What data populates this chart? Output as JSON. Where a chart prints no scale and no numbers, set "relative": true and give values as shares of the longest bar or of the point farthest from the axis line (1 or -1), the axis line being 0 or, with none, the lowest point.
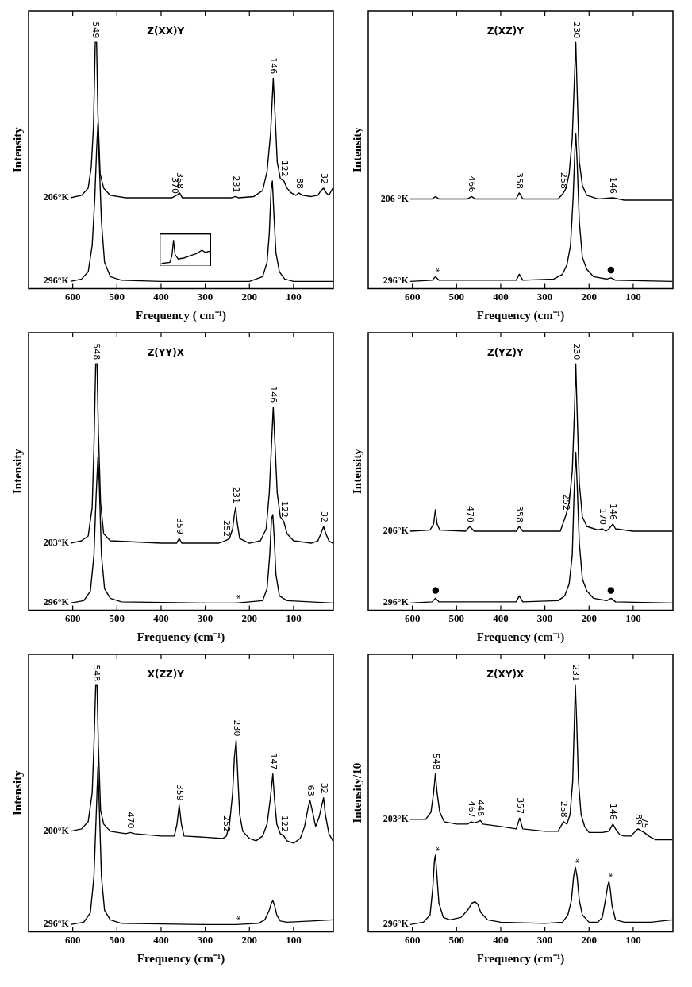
{
  "chart_data": [
    {
      "type": "line",
      "title": "Z(XX)Y",
      "xlabel": "Frequency ( cm⁻¹)",
      "ylabel": "Intensity",
      "xlim": [
        700,
        10
      ],
      "xticks": [
        600,
        500,
        400,
        300,
        200,
        100
      ],
      "relative": true,
      "tick_labels": "x",
      "series": [
        {
          "name": "206°K",
          "color": "#000000",
          "x": [
            605,
            580,
            565,
            558,
            553,
            549,
            546,
            543,
            538,
            530,
            515,
            480,
            400,
            375,
            365,
            358,
            352,
            300,
            240,
            231,
            225,
            190,
            170,
            160,
            152,
            146,
            142,
            137,
            130,
            122,
            115,
            105,
            95,
            88,
            80,
            60,
            45,
            38,
            32,
            26,
            20,
            14,
            11
          ],
          "values": [
            0.35,
            0.36,
            0.39,
            0.48,
            0.65,
            1.0,
            1.0,
            0.7,
            0.45,
            0.39,
            0.36,
            0.35,
            0.35,
            0.35,
            0.36,
            0.37,
            0.35,
            0.35,
            0.35,
            0.355,
            0.35,
            0.355,
            0.38,
            0.46,
            0.62,
            0.85,
            0.7,
            0.5,
            0.43,
            0.42,
            0.39,
            0.37,
            0.36,
            0.37,
            0.36,
            0.355,
            0.36,
            0.38,
            0.39,
            0.37,
            0.36,
            0.38,
            0.39
          ]
        },
        {
          "name": "296°K",
          "color": "#000000",
          "x": [
            605,
            580,
            565,
            556,
            550,
            546,
            543,
            540,
            535,
            528,
            515,
            490,
            400,
            200,
            170,
            160,
            155,
            151,
            148,
            145,
            140,
            132,
            120,
            100,
            11
          ],
          "values": [
            0,
            0.01,
            0.04,
            0.15,
            0.35,
            0.55,
            0.66,
            0.5,
            0.25,
            0.08,
            0.02,
            0.005,
            0,
            0,
            0.02,
            0.08,
            0.2,
            0.38,
            0.42,
            0.3,
            0.12,
            0.04,
            0.01,
            0,
            0
          ]
        }
      ],
      "annotations": [
        {
          "text": "549",
          "x": 549,
          "y": 1.0
        },
        {
          "text": "370",
          "x": 370,
          "y": 0.35
        },
        {
          "text": "358",
          "x": 358,
          "y": 0.37
        },
        {
          "text": "231",
          "x": 231,
          "y": 0.355
        },
        {
          "text": "146",
          "x": 146,
          "y": 0.85
        },
        {
          "text": "122",
          "x": 122,
          "y": 0.42
        },
        {
          "text": "88",
          "x": 88,
          "y": 0.37
        },
        {
          "text": "32",
          "x": 32,
          "y": 0.39
        }
      ]
    },
    {
      "type": "line",
      "title": "Z(XZ)Y",
      "xlabel": "Frequency (cm⁻¹)",
      "ylabel": "Intensity",
      "xlim": [
        700,
        10
      ],
      "xticks": [
        600,
        500,
        400,
        300,
        200,
        100
      ],
      "relative": true,
      "tick_labels": "x",
      "series": [
        {
          "name": "206 °K",
          "color": "#000000",
          "x": [
            605,
            555,
            548,
            540,
            475,
            466,
            458,
            365,
            358,
            350,
            270,
            258,
            252,
            245,
            238,
            233,
            230,
            227,
            222,
            215,
            205,
            180,
            146,
            120,
            11
          ],
          "values": [
            0.345,
            0.345,
            0.355,
            0.345,
            0.345,
            0.355,
            0.345,
            0.345,
            0.37,
            0.345,
            0.345,
            0.37,
            0.39,
            0.45,
            0.6,
            0.85,
            1.0,
            0.8,
            0.5,
            0.4,
            0.36,
            0.345,
            0.35,
            0.34,
            0.34
          ]
        },
        {
          "name": "296°K",
          "color": "#000000",
          "x": [
            605,
            555,
            548,
            540,
            365,
            358,
            350,
            280,
            260,
            250,
            242,
            236,
            232,
            230,
            227,
            222,
            215,
            205,
            190,
            160,
            150,
            140,
            11
          ],
          "values": [
            0,
            0.005,
            0.02,
            0.005,
            0.005,
            0.03,
            0.005,
            0.01,
            0.03,
            0.07,
            0.15,
            0.35,
            0.55,
            0.62,
            0.5,
            0.25,
            0.1,
            0.05,
            0.02,
            0.01,
            0.015,
            0.005,
            0
          ]
        }
      ],
      "annotations": [
        {
          "text": "230",
          "x": 230,
          "y": 1.0
        },
        {
          "text": "466",
          "x": 466,
          "y": 0.355
        },
        {
          "text": "358",
          "x": 358,
          "y": 0.37
        },
        {
          "text": "258",
          "x": 258,
          "y": 0.37
        },
        {
          "text": "146",
          "x": 146,
          "y": 0.35
        },
        {
          "text": "*",
          "x": 548,
          "y": 0.02
        },
        {
          "text": "●",
          "x": 150,
          "y": 0.015
        }
      ]
    },
    {
      "type": "line",
      "title": "Z(YY)X",
      "xlabel": "Frequency (cm⁻¹)",
      "ylabel": "Intensity",
      "xlim": [
        700,
        10
      ],
      "xticks": [
        600,
        500,
        400,
        300,
        200,
        100
      ],
      "relative": true,
      "tick_labels": "x",
      "series": [
        {
          "name": "203°K",
          "color": "#000000",
          "x": [
            605,
            580,
            565,
            556,
            552,
            548,
            545,
            542,
            537,
            530,
            515,
            400,
            365,
            359,
            353,
            270,
            255,
            245,
            238,
            234,
            231,
            228,
            222,
            200,
            175,
            162,
            155,
            150,
            146,
            142,
            137,
            130,
            122,
            115,
            100,
            60,
            45,
            38,
            32,
            27,
            20,
            11
          ],
          "values": [
            0.25,
            0.26,
            0.28,
            0.4,
            0.65,
            1.0,
            1.0,
            0.72,
            0.42,
            0.29,
            0.26,
            0.25,
            0.25,
            0.27,
            0.25,
            0.25,
            0.26,
            0.27,
            0.31,
            0.37,
            0.4,
            0.34,
            0.27,
            0.25,
            0.26,
            0.31,
            0.46,
            0.66,
            0.82,
            0.66,
            0.46,
            0.36,
            0.34,
            0.29,
            0.26,
            0.25,
            0.26,
            0.29,
            0.32,
            0.29,
            0.26,
            0.25
          ]
        },
        {
          "name": "296°K",
          "color": "#000000",
          "x": [
            605,
            575,
            560,
            552,
            547,
            543,
            540,
            535,
            528,
            515,
            490,
            300,
            230,
            170,
            160,
            154,
            150,
            147,
            144,
            140,
            132,
            115,
            11
          ],
          "values": [
            0,
            0.01,
            0.05,
            0.2,
            0.45,
            0.61,
            0.5,
            0.2,
            0.06,
            0.02,
            0.005,
            0,
            0,
            0.01,
            0.06,
            0.2,
            0.35,
            0.37,
            0.28,
            0.12,
            0.03,
            0.01,
            0
          ]
        }
      ],
      "annotations": [
        {
          "text": "548",
          "x": 548,
          "y": 1.0
        },
        {
          "text": "359",
          "x": 359,
          "y": 0.27
        },
        {
          "text": "252",
          "x": 252,
          "y": 0.26
        },
        {
          "text": "231",
          "x": 231,
          "y": 0.4
        },
        {
          "text": "146",
          "x": 146,
          "y": 0.82
        },
        {
          "text": "122",
          "x": 122,
          "y": 0.34
        },
        {
          "text": "32",
          "x": 32,
          "y": 0.32
        },
        {
          "text": "*",
          "x": 230,
          "y": 0
        }
      ]
    },
    {
      "type": "line",
      "title": "Z(YZ)Y",
      "xlabel": "Frequency (cm⁻¹)",
      "ylabel": "Intensity",
      "xlim": [
        700,
        10
      ],
      "xticks": [
        600,
        500,
        400,
        300,
        200,
        100
      ],
      "relative": true,
      "tick_labels": "x",
      "series": [
        {
          "name": "206°K",
          "color": "#000000",
          "x": [
            605,
            560,
            552,
            548,
            544,
            538,
            480,
            470,
            460,
            365,
            358,
            350,
            265,
            252,
            245,
            238,
            233,
            230,
            227,
            222,
            215,
            205,
            180,
            170,
            162,
            155,
            146,
            140,
            100,
            11
          ],
          "values": [
            0.3,
            0.305,
            0.33,
            0.39,
            0.33,
            0.305,
            0.3,
            0.32,
            0.3,
            0.3,
            0.32,
            0.3,
            0.3,
            0.37,
            0.42,
            0.55,
            0.8,
            1.0,
            0.8,
            0.5,
            0.36,
            0.32,
            0.305,
            0.31,
            0.3,
            0.31,
            0.33,
            0.31,
            0.3,
            0.3
          ]
        },
        {
          "name": "296°K",
          "color": "#000000",
          "x": [
            605,
            555,
            548,
            540,
            365,
            358,
            350,
            270,
            255,
            245,
            238,
            234,
            230,
            227,
            222,
            215,
            205,
            190,
            160,
            150,
            140,
            11
          ],
          "values": [
            0,
            0.005,
            0.02,
            0.005,
            0.005,
            0.03,
            0.005,
            0.01,
            0.03,
            0.08,
            0.2,
            0.45,
            0.63,
            0.5,
            0.25,
            0.1,
            0.05,
            0.02,
            0.01,
            0.02,
            0.005,
            0
          ]
        }
      ],
      "annotations": [
        {
          "text": "230",
          "x": 230,
          "y": 1.0
        },
        {
          "text": "470",
          "x": 470,
          "y": 0.32
        },
        {
          "text": "358",
          "x": 358,
          "y": 0.32
        },
        {
          "text": "252",
          "x": 252,
          "y": 0.37
        },
        {
          "text": "170",
          "x": 170,
          "y": 0.31
        },
        {
          "text": "146",
          "x": 146,
          "y": 0.33
        },
        {
          "text": "●",
          "x": 548,
          "y": 0.02
        },
        {
          "text": "●",
          "x": 150,
          "y": 0.02
        }
      ]
    },
    {
      "type": "line",
      "title": "X(ZZ)Y",
      "xlabel": "Frequency (cm⁻¹)",
      "ylabel": "Intensity",
      "xlim": [
        700,
        10
      ],
      "xticks": [
        600,
        500,
        400,
        300,
        200,
        100
      ],
      "relative": true,
      "tick_labels": "x",
      "series": [
        {
          "name": "200°K",
          "color": "#000000",
          "x": [
            605,
            580,
            565,
            556,
            552,
            548,
            545,
            542,
            537,
            530,
            515,
            480,
            470,
            460,
            400,
            370,
            364,
            359,
            354,
            348,
            300,
            260,
            252,
            245,
            238,
            234,
            230,
            227,
            222,
            215,
            200,
            185,
            170,
            160,
            153,
            147,
            143,
            138,
            130,
            122,
            115,
            100,
            85,
            75,
            68,
            63,
            58,
            50,
            42,
            36,
            32,
            28,
            20,
            11
          ],
          "values": [
            0.39,
            0.4,
            0.43,
            0.55,
            0.75,
            1.0,
            1.0,
            0.75,
            0.48,
            0.42,
            0.39,
            0.38,
            0.385,
            0.38,
            0.37,
            0.37,
            0.42,
            0.5,
            0.42,
            0.37,
            0.365,
            0.36,
            0.37,
            0.42,
            0.55,
            0.7,
            0.77,
            0.65,
            0.46,
            0.39,
            0.36,
            0.35,
            0.37,
            0.42,
            0.52,
            0.63,
            0.52,
            0.42,
            0.38,
            0.37,
            0.35,
            0.34,
            0.36,
            0.41,
            0.48,
            0.52,
            0.48,
            0.41,
            0.45,
            0.5,
            0.53,
            0.46,
            0.38,
            0.35
          ]
        },
        {
          "name": "296°K",
          "color": "#000000",
          "x": [
            605,
            575,
            560,
            552,
            547,
            543,
            540,
            535,
            528,
            515,
            490,
            300,
            230,
            180,
            165,
            155,
            150,
            147,
            143,
            138,
            130,
            115,
            60,
            11
          ],
          "values": [
            0,
            0.01,
            0.05,
            0.2,
            0.45,
            0.66,
            0.5,
            0.2,
            0.06,
            0.02,
            0.005,
            0,
            0,
            0.005,
            0.02,
            0.06,
            0.09,
            0.1,
            0.08,
            0.04,
            0.015,
            0.01,
            0.015,
            0.02
          ]
        }
      ],
      "annotations": [
        {
          "text": "548",
          "x": 548,
          "y": 1.0
        },
        {
          "text": "470",
          "x": 470,
          "y": 0.385
        },
        {
          "text": "359",
          "x": 359,
          "y": 0.5
        },
        {
          "text": "252",
          "x": 252,
          "y": 0.37
        },
        {
          "text": "230",
          "x": 230,
          "y": 0.77
        },
        {
          "text": "147",
          "x": 147,
          "y": 0.63
        },
        {
          "text": "122",
          "x": 122,
          "y": 0.37
        },
        {
          "text": "63",
          "x": 63,
          "y": 0.52
        },
        {
          "text": "32",
          "x": 32,
          "y": 0.53
        },
        {
          "text": "*",
          "x": 230,
          "y": 0
        }
      ]
    },
    {
      "type": "line",
      "title": "Z(XY)X",
      "xlabel": "Frequency (cm⁻¹)",
      "ylabel": "Intensity/10",
      "xlim": [
        700,
        10
      ],
      "xticks": [
        600,
        500,
        400,
        300,
        200,
        100
      ],
      "relative": true,
      "tick_labels": "x",
      "series": [
        {
          "name": "203°K",
          "color": "#000000",
          "x": [
            605,
            570,
            558,
            552,
            548,
            544,
            538,
            528,
            500,
            475,
            467,
            460,
            452,
            446,
            440,
            400,
            365,
            357,
            350,
            300,
            270,
            258,
            250,
            243,
            237,
            231,
            228,
            224,
            218,
            210,
            200,
            170,
            155,
            146,
            140,
            130,
            120,
            105,
            95,
            89,
            80,
            75,
            65,
            50,
            30,
            11
          ],
          "values": [
            0.44,
            0.44,
            0.47,
            0.55,
            0.63,
            0.55,
            0.47,
            0.43,
            0.42,
            0.42,
            0.43,
            0.425,
            0.43,
            0.435,
            0.42,
            0.41,
            0.4,
            0.445,
            0.4,
            0.39,
            0.39,
            0.43,
            0.42,
            0.46,
            0.6,
            1.0,
            0.85,
            0.6,
            0.46,
            0.41,
            0.385,
            0.385,
            0.39,
            0.42,
            0.4,
            0.375,
            0.37,
            0.37,
            0.39,
            0.4,
            0.39,
            0.385,
            0.37,
            0.355,
            0.355,
            0.355
          ]
        },
        {
          "name": "296°K",
          "color": "#000000",
          "x": [
            605,
            575,
            560,
            554,
            550,
            548,
            545,
            540,
            530,
            515,
            490,
            475,
            465,
            458,
            452,
            445,
            430,
            400,
            300,
            260,
            248,
            240,
            235,
            231,
            227,
            222,
            215,
            200,
            180,
            170,
            163,
            158,
            155,
            152,
            148,
            140,
            120,
            60,
            11
          ],
          "values": [
            0,
            0.01,
            0.04,
            0.15,
            0.27,
            0.29,
            0.22,
            0.09,
            0.03,
            0.02,
            0.03,
            0.06,
            0.09,
            0.095,
            0.085,
            0.05,
            0.02,
            0.01,
            0.005,
            0.01,
            0.04,
            0.1,
            0.2,
            0.24,
            0.2,
            0.1,
            0.04,
            0.01,
            0.01,
            0.03,
            0.1,
            0.16,
            0.18,
            0.15,
            0.08,
            0.02,
            0.01,
            0.01,
            0.02
          ]
        }
      ],
      "annotations": [
        {
          "text": "231",
          "x": 231,
          "y": 1.0
        },
        {
          "text": "548",
          "x": 548,
          "y": 0.63
        },
        {
          "text": "467",
          "x": 467,
          "y": 0.43
        },
        {
          "text": "446",
          "x": 446,
          "y": 0.435
        },
        {
          "text": "357",
          "x": 357,
          "y": 0.445
        },
        {
          "text": "258",
          "x": 258,
          "y": 0.43
        },
        {
          "text": "146",
          "x": 146,
          "y": 0.42
        },
        {
          "text": "89",
          "x": 89,
          "y": 0.4
        },
        {
          "text": "75",
          "x": 75,
          "y": 0.385
        },
        {
          "text": "*",
          "x": 548,
          "y": 0.29
        },
        {
          "text": "*",
          "x": 231,
          "y": 0.24
        },
        {
          "text": "*",
          "x": 155,
          "y": 0.18
        }
      ]
    }
  ]
}
